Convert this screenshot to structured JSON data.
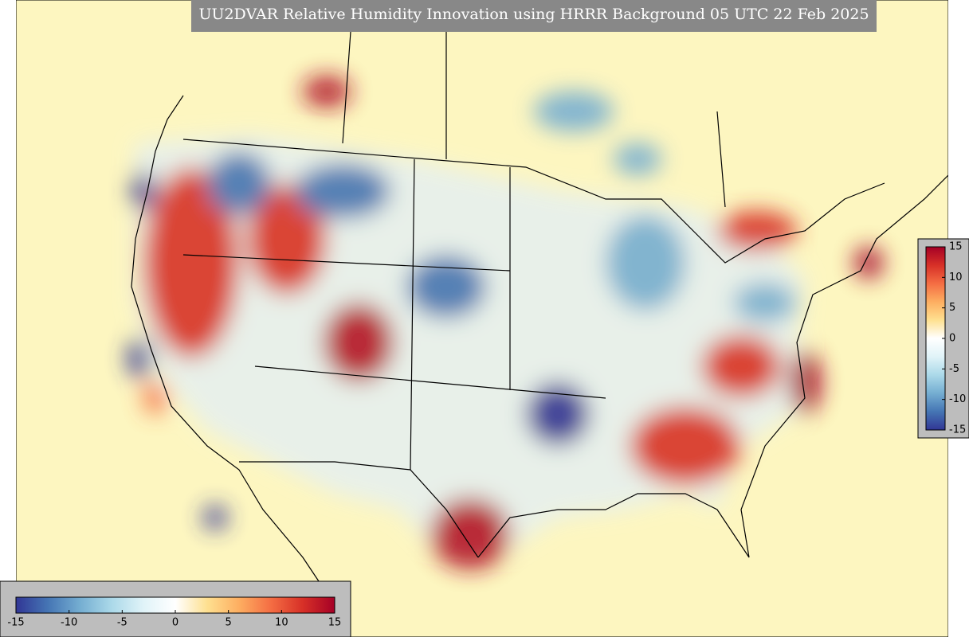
{
  "title": "UU2DVAR Relative Humidity Innovation using HRRR Background 05 UTC 22 Feb 2025",
  "colormap": [
    "#313695",
    "#4575b4",
    "#74add1",
    "#abd9e9",
    "#e0f3f8",
    "#ffffff",
    "#fee090",
    "#fdae61",
    "#f46d43",
    "#d73027",
    "#a50026"
  ],
  "colorbars": [
    {
      "orientation": "horizontal",
      "lim": [
        -15,
        15
      ],
      "ticks": [
        -15,
        -10,
        -5,
        0,
        5,
        10,
        15
      ]
    },
    {
      "orientation": "vertical",
      "lim": [
        -15,
        15
      ],
      "ticks": [
        15,
        10,
        5,
        0,
        -5,
        -10,
        -15
      ]
    }
  ]
}
